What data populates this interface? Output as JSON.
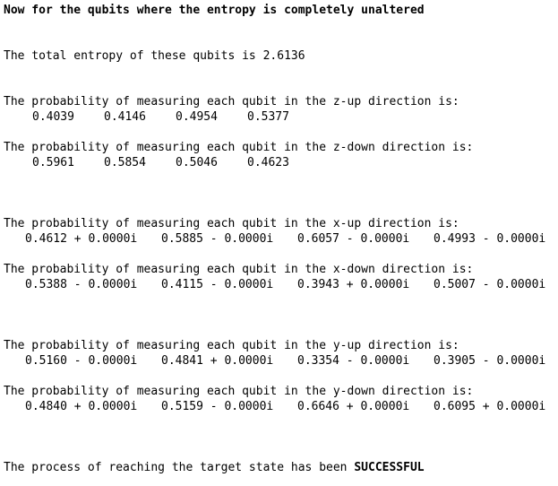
{
  "output": {
    "heading": "Now for the qubits where the entropy is completely unaltered",
    "entropy_line": "The total entropy of these qubits is 2.6136",
    "z_up": {
      "label": "The probability of measuring each qubit in the z-up direction is:",
      "values": [
        "0.4039",
        "0.4146",
        "0.4954",
        "0.5377"
      ]
    },
    "z_down": {
      "label": "The probability of measuring each qubit in the z-down direction is:",
      "values": [
        "0.5961",
        "0.5854",
        "0.5046",
        "0.4623"
      ]
    },
    "x_up": {
      "label": "The probability of measuring each qubit in the x-up direction is:",
      "values": [
        "0.4612 + 0.0000i",
        "0.5885 - 0.0000i",
        "0.6057 - 0.0000i",
        "0.4993 - 0.0000i"
      ]
    },
    "x_down": {
      "label": "The probability of measuring each qubit in the x-down direction is:",
      "values": [
        "0.5388 - 0.0000i",
        "0.4115 - 0.0000i",
        "0.3943 + 0.0000i",
        "0.5007 - 0.0000i"
      ]
    },
    "y_up": {
      "label": "The probability of measuring each qubit in the y-up direction is:",
      "values": [
        "0.5160 - 0.0000i",
        "0.4841 + 0.0000i",
        "0.3354 - 0.0000i",
        "0.3905 - 0.0000i"
      ]
    },
    "y_down": {
      "label": "The probability of measuring each qubit in the y-down direction is:",
      "values": [
        "0.4840 + 0.0000i",
        "0.5159 - 0.0000i",
        "0.6646 + 0.0000i",
        "0.6095 + 0.0000i"
      ]
    },
    "result_prefix": "The process of reaching the target state has been ",
    "result_status": "SUCCESSFUL"
  }
}
